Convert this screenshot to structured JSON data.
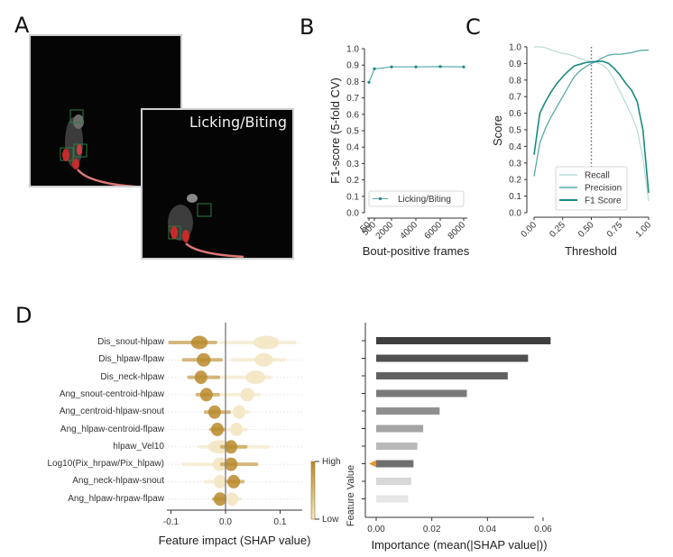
{
  "panels": {
    "a": {
      "label": "A",
      "images": [
        {
          "caption": ""
        },
        {
          "caption": "Licking/Biting"
        }
      ]
    },
    "b": {
      "label": "B"
    },
    "c": {
      "label": "C"
    },
    "d": {
      "label": "D"
    }
  },
  "colors": {
    "teal_dark": "#1a8a80",
    "teal_mid": "#5aaaa8",
    "teal_light": "#b7dcd6",
    "shap_high": "#b8892a",
    "shap_low": "#f3e7c6",
    "marker_orange": "#e8962a"
  },
  "chart_data": [
    {
      "id": "B",
      "type": "line",
      "title": "",
      "xlabel": "Bout-positive frames",
      "ylabel": "F1-score (5-fold CV)",
      "x": [
        50,
        500,
        2000,
        4000,
        6000,
        8000
      ],
      "xticks": [
        "50",
        "500",
        "2000",
        "4000",
        "6000",
        "8000"
      ],
      "yticks": [
        "0.0",
        "0.1",
        "0.2",
        "0.3",
        "0.4",
        "0.5",
        "0.6",
        "0.7",
        "0.8",
        "0.9",
        "1.0"
      ],
      "ylim": [
        0,
        1.0
      ],
      "series": [
        {
          "name": "Licking/Biting",
          "values": [
            0.795,
            0.877,
            0.889,
            0.889,
            0.891,
            0.889
          ]
        }
      ],
      "legend": "bottom"
    },
    {
      "id": "C",
      "type": "line",
      "title": "",
      "xlabel": "Threshold",
      "ylabel": "Score",
      "x": [
        0.0,
        0.05,
        0.1,
        0.15,
        0.2,
        0.25,
        0.3,
        0.35,
        0.4,
        0.45,
        0.5,
        0.55,
        0.6,
        0.65,
        0.7,
        0.75,
        0.8,
        0.85,
        0.9,
        0.95,
        1.0
      ],
      "xticks": [
        "0.00",
        "0.25",
        "0.50",
        "0.75",
        "1.00"
      ],
      "yticks": [
        "0.0",
        "0.1",
        "0.2",
        "0.3",
        "0.4",
        "0.5",
        "0.6",
        "0.7",
        "0.8",
        "0.9",
        "1.0"
      ],
      "ylim": [
        0,
        1.0
      ],
      "xlim": [
        0,
        1.0
      ],
      "vline": 0.5,
      "series": [
        {
          "name": "Recall",
          "values": [
            1.0,
            1.0,
            0.995,
            0.98,
            0.97,
            0.96,
            0.955,
            0.945,
            0.93,
            0.92,
            0.91,
            0.905,
            0.89,
            0.86,
            0.8,
            0.73,
            0.66,
            0.59,
            0.5,
            0.33,
            0.07
          ]
        },
        {
          "name": "Precision",
          "values": [
            0.22,
            0.42,
            0.51,
            0.58,
            0.64,
            0.7,
            0.76,
            0.82,
            0.855,
            0.88,
            0.9,
            0.915,
            0.935,
            0.95,
            0.955,
            0.955,
            0.96,
            0.965,
            0.975,
            0.98,
            0.98
          ]
        },
        {
          "name": "F1 Score",
          "values": [
            0.35,
            0.6,
            0.67,
            0.73,
            0.78,
            0.82,
            0.855,
            0.885,
            0.895,
            0.905,
            0.91,
            0.912,
            0.913,
            0.9,
            0.87,
            0.83,
            0.78,
            0.74,
            0.67,
            0.5,
            0.12
          ]
        }
      ],
      "legend": "bottom-center"
    },
    {
      "id": "D-shap",
      "type": "scatter",
      "title": "",
      "xlabel": "Feature impact (SHAP value)",
      "ylabel": "",
      "xticks": [
        "-0.1",
        "0.0",
        "0.1"
      ],
      "xlim": [
        -0.11,
        0.14
      ],
      "colorbar": {
        "label": "Feature Value",
        "high": "High",
        "low": "Low"
      },
      "features": [
        {
          "name": "Dis_snout-hlpaw",
          "high_range": [
            -0.105,
            -0.015
          ],
          "high_peak": -0.048,
          "low_range": [
            -0.01,
            0.13
          ],
          "low_peak": 0.075
        },
        {
          "name": "Dis_hlpaw-flpaw",
          "high_range": [
            -0.08,
            -0.005
          ],
          "high_peak": -0.04,
          "low_range": [
            0.01,
            0.11
          ],
          "low_peak": 0.07
        },
        {
          "name": "Dis_neck-hlpaw",
          "high_range": [
            -0.07,
            -0.01
          ],
          "high_peak": -0.045,
          "low_range": [
            -0.02,
            0.085
          ],
          "low_peak": 0.055
        },
        {
          "name": "Ang_snout-centroid-hlpaw",
          "high_range": [
            -0.055,
            -0.01
          ],
          "high_peak": -0.035,
          "low_range": [
            -0.01,
            0.065
          ],
          "low_peak": 0.04
        },
        {
          "name": "Ang_centroid-hlpaw-snout",
          "high_range": [
            -0.04,
            0.01
          ],
          "high_peak": -0.02,
          "low_range": [
            0.01,
            0.045
          ],
          "low_peak": 0.025
        },
        {
          "name": "Ang_hlpaw-centroid-flpaw",
          "high_range": [
            -0.03,
            0.0
          ],
          "high_peak": -0.015,
          "low_range": [
            0.0,
            0.04
          ],
          "low_peak": 0.02
        },
        {
          "name": "hlpaw_Vel10",
          "high_range": [
            -0.01,
            0.04
          ],
          "high_peak": 0.01,
          "low_range": [
            -0.05,
            0.08
          ],
          "low_peak": -0.01
        },
        {
          "name": "Log10(Pix_hrpaw/Pix_hlpaw)",
          "high_range": [
            -0.01,
            0.06
          ],
          "high_peak": 0.01,
          "low_range": [
            -0.08,
            0.0
          ],
          "low_peak": -0.01
        },
        {
          "name": "Ang_neck-hlpaw-snout",
          "high_range": [
            0.0,
            0.035
          ],
          "high_peak": 0.015,
          "low_range": [
            -0.04,
            0.0
          ],
          "low_peak": -0.01
        },
        {
          "name": "Ang_hlpaw-hrpaw-flpaw",
          "high_range": [
            -0.025,
            0.0
          ],
          "high_peak": -0.01,
          "low_range": [
            0.0,
            0.03
          ],
          "low_peak": 0.012
        }
      ]
    },
    {
      "id": "D-importance",
      "type": "bar",
      "orientation": "horizontal",
      "title": "",
      "xlabel": "Importance (mean(|SHAP value|))",
      "ylabel": "Feature Value",
      "xticks": [
        "0.00",
        "0.02",
        "0.04",
        "0.06"
      ],
      "xlim": [
        -0.004,
        0.066
      ],
      "categories": [
        "Dis_snout-hlpaw",
        "Dis_hlpaw-flpaw",
        "Dis_neck-hlpaw",
        "Ang_snout-centroid-hlpaw",
        "Ang_centroid-hlpaw-snout",
        "Ang_hlpaw-centroid-flpaw",
        "hlpaw_Vel10",
        "Log10(Pix_hrpaw/Pix_hlpaw)",
        "Ang_neck-hlpaw-snout",
        "Ang_hlpaw-hrpaw-flpaw"
      ],
      "values": [
        0.0627,
        0.0546,
        0.0473,
        0.0326,
        0.0228,
        0.0169,
        0.0148,
        0.0134,
        0.0126,
        0.0115
      ],
      "bar_colors": [
        "#3f3f3f",
        "#505050",
        "#616161",
        "#7a7a7a",
        "#8f8f8f",
        "#a4a4a4",
        "#b9b9b9",
        "#6f6f6f",
        "#d8d8d8",
        "#e6e6e6"
      ],
      "highlight_index": 7
    }
  ]
}
